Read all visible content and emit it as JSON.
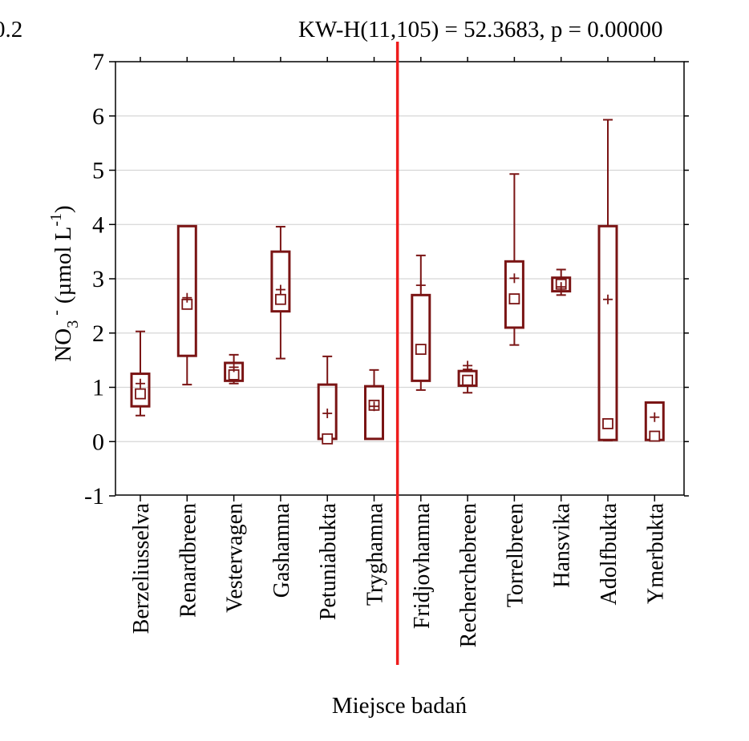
{
  "header": {
    "left_text": "0.2",
    "right_text": "KW-H(11,105) = 52.3683, p = 0.00000"
  },
  "chart_data": {
    "type": "box",
    "xlabel": "Miejsce badań",
    "ylabel_main": "NO",
    "ylabel_sub": "3",
    "ylabel_sup_charge": "-",
    "ylabel_units_pre": "(µmol L",
    "ylabel_units_sup": "-1",
    "ylabel_units_post": ")",
    "ylim": [
      -1,
      7
    ],
    "yticks": [
      "7",
      "6",
      "5",
      "4",
      "3",
      "2",
      "1",
      "0",
      "-1"
    ],
    "grid": true,
    "divider_after_index": 5,
    "colors": {
      "box": "#7a1414",
      "divider": "#ee1c1c",
      "grid": "#d6d6d6",
      "axis": "#000000"
    },
    "series": [
      {
        "category": "Berzeliusselva",
        "min": 0.48,
        "q1": 0.65,
        "median": 0.88,
        "q3": 1.25,
        "max": 2.03,
        "mean": 1.07
      },
      {
        "category": "Renardbreen",
        "min": 1.05,
        "q1": 1.58,
        "median": 2.53,
        "q3": 3.97,
        "max": 3.97,
        "mean": 2.65
      },
      {
        "category": "Vestervagen",
        "min": 1.07,
        "q1": 1.12,
        "median": 1.23,
        "q3": 1.45,
        "max": 1.6,
        "mean": 1.37
      },
      {
        "category": "Gashamna",
        "min": 1.53,
        "q1": 2.4,
        "median": 2.62,
        "q3": 3.5,
        "max": 3.96,
        "mean": 2.8
      },
      {
        "category": "Petuniabukta",
        "min": 0.03,
        "q1": 0.05,
        "median": 0.05,
        "q3": 1.05,
        "max": 1.57,
        "mean": 0.52
      },
      {
        "category": "Tryghamna",
        "min": 0.05,
        "q1": 0.05,
        "median": 0.67,
        "q3": 1.02,
        "max": 1.32,
        "mean": 0.65
      },
      {
        "category": "Fridjovhamna",
        "min": 0.95,
        "q1": 1.12,
        "median": 1.7,
        "q3": 2.7,
        "max": 3.43,
        "mean": 2.88
      },
      {
        "category": "Recherchebreen",
        "min": 0.9,
        "q1": 1.03,
        "median": 1.13,
        "q3": 1.3,
        "max": 1.33,
        "mean": 1.4
      },
      {
        "category": "Torrelbreen",
        "min": 1.78,
        "q1": 2.1,
        "median": 2.63,
        "q3": 3.32,
        "max": 4.93,
        "mean": 3.01
      },
      {
        "category": "Hansvika",
        "min": 2.7,
        "q1": 2.77,
        "median": 2.9,
        "q3": 3.02,
        "max": 3.17,
        "mean": 2.85
      },
      {
        "category": "Adolfbukta",
        "min": 0.02,
        "q1": 0.03,
        "median": 0.33,
        "q3": 3.97,
        "max": 5.93,
        "mean": 2.62
      },
      {
        "category": "Ymerbukta",
        "min": 0.02,
        "q1": 0.03,
        "median": 0.1,
        "q3": 0.72,
        "max": 0.72,
        "mean": 0.45
      }
    ]
  }
}
